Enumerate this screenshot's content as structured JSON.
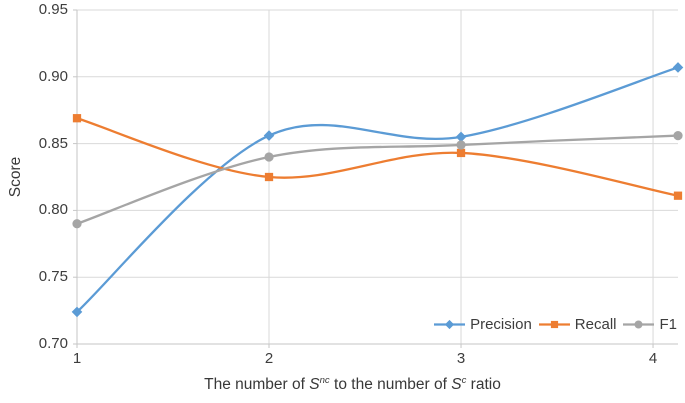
{
  "chart_data": {
    "type": "line",
    "title": "",
    "ylabel": "Score",
    "xlabel_parts": {
      "prefix": "The number of ",
      "s1": "S",
      "sup1": "nc",
      "middle": " to the number of ",
      "s2": "S",
      "sup2": "c",
      "suffix": " ratio"
    },
    "x": [
      1,
      2,
      3,
      4.13
    ],
    "x_tick_labels": [
      "1",
      "2",
      "3",
      "4"
    ],
    "y_tick_labels": [
      "0.70",
      "0.75",
      "0.80",
      "0.85",
      "0.90",
      "0.95"
    ],
    "xlim": [
      1,
      4.13
    ],
    "ylim": [
      0.7,
      0.95
    ],
    "grid": true,
    "line_style": "smooth",
    "legend_position": "inside-bottom-right",
    "series": [
      {
        "name": "Precision",
        "color": "#5B9BD5",
        "marker": "diamond",
        "values": [
          0.724,
          0.856,
          0.855,
          0.907
        ]
      },
      {
        "name": "Recall",
        "color": "#ED7D31",
        "marker": "square",
        "values": [
          0.869,
          0.825,
          0.843,
          0.811
        ]
      },
      {
        "name": "F1",
        "color": "#A5A5A5",
        "marker": "circle",
        "values": [
          0.79,
          0.84,
          0.849,
          0.856
        ]
      }
    ],
    "colors": {
      "background": "#ffffff",
      "gridline": "#D9D9D9",
      "axis_line": "#C6C6C6",
      "tick_label": "#3d3d3d",
      "axis_title": "#383838"
    }
  }
}
